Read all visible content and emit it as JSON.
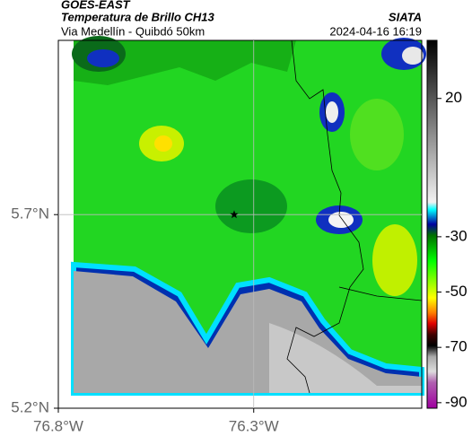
{
  "header": {
    "title": "GOES-EAST",
    "subtitle": "Temperatura de Brillo CH13",
    "route": "Via Medellín - Quibdó 50km",
    "source": "SIATA",
    "timestamp": "2024-04-16 16:19"
  },
  "map": {
    "xlim": [
      -76.8,
      -75.87
    ],
    "ylim": [
      5.2,
      6.15
    ],
    "xticks": [
      {
        "value": -76.8,
        "label": "76.8°W"
      },
      {
        "value": -76.3,
        "label": "76.3°W"
      }
    ],
    "yticks": [
      {
        "value": 5.7,
        "label": "5.7°N"
      },
      {
        "value": 5.2,
        "label": "5.2°N"
      }
    ],
    "grid": true,
    "marker": {
      "lon": -76.35,
      "lat": 5.7
    }
  },
  "colorbar": {
    "lim": [
      -92,
      41
    ],
    "ticks": [
      20,
      -30,
      -50,
      -70,
      -90
    ]
  }
}
